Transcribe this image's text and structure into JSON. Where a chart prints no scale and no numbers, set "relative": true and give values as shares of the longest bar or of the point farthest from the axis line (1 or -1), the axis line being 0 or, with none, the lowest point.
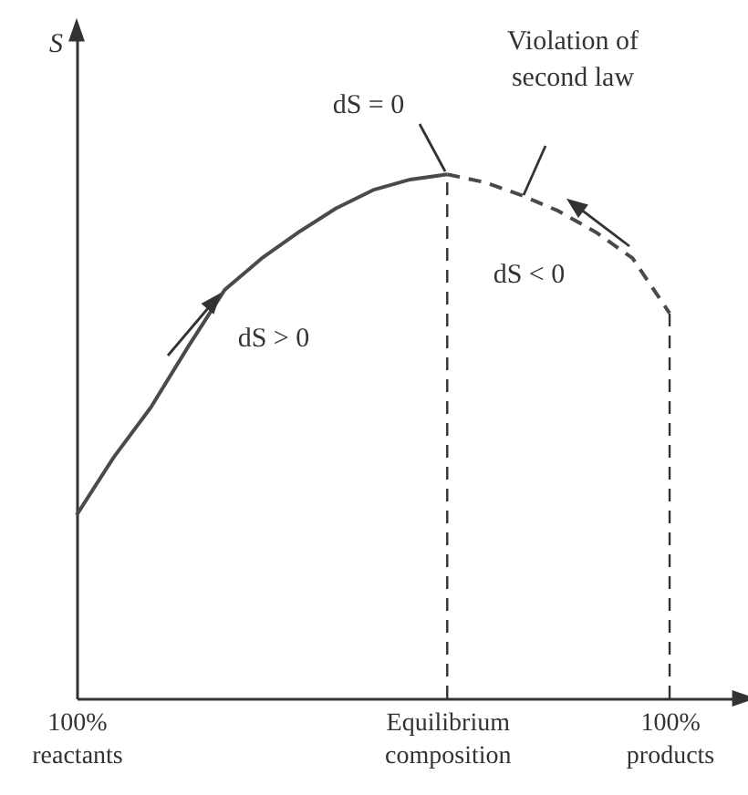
{
  "chart_data": {
    "type": "line",
    "relative": true,
    "ylabel": "S",
    "categories": [
      "100%\nreactants",
      null,
      null,
      null,
      null,
      null,
      null,
      null,
      null,
      null,
      "Equilibrium\ncomposition",
      null,
      null,
      null,
      null,
      null,
      "100%\nproducts"
    ],
    "series": [
      {
        "color": "#4a4a4a",
        "line_style": "solid",
        "values": [
          0.35,
          0.46,
          0.555,
          0.67,
          0.78,
          0.84,
          0.89,
          0.935,
          0.97,
          0.99,
          1,
          null,
          null,
          null,
          null,
          null,
          null
        ]
      },
      {
        "color": "#4a4a4a",
        "line_style": "dashed",
        "values": [
          null,
          null,
          null,
          null,
          null,
          null,
          null,
          null,
          null,
          null,
          1,
          0.985,
          0.96,
          0.93,
          0.89,
          0.84,
          0.735
        ]
      }
    ],
    "ref_lines": [
      {
        "axis": "x",
        "value": "Equilibrium\ncomposition",
        "line_style": "dashed",
        "color": "#333333"
      },
      {
        "axis": "x",
        "value": "100%\nproducts",
        "line_style": "dashed",
        "color": "#333333"
      }
    ],
    "annotations": [
      "dS = 0",
      "dS > 0",
      "dS < 0",
      "Violation of\nsecond law"
    ],
    "grid": false,
    "marker": "none"
  }
}
